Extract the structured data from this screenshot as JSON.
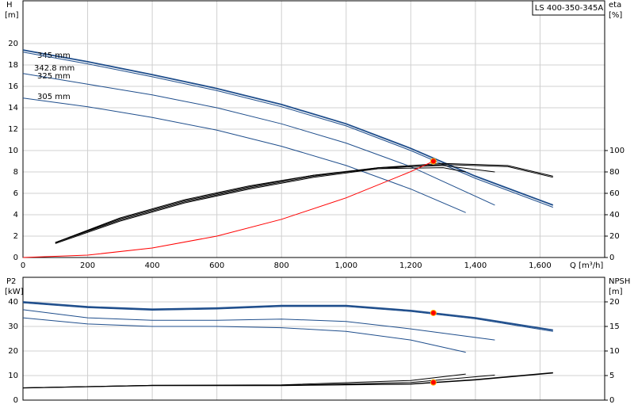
{
  "chart_data": [
    {
      "type": "line",
      "title": "LS 400-350-345A",
      "ylabel": "H",
      "yunit": "[m]",
      "y2label": "eta",
      "y2unit": "[%]",
      "xlabel": "Q [m³/h]",
      "xlim": [
        0,
        1800
      ],
      "xticks": [
        0,
        200,
        400,
        600,
        800,
        {
          "value": 1000,
          "label": "1,000"
        },
        {
          "value": 1200,
          "label": "1,200"
        },
        {
          "value": 1400,
          "label": "1,400"
        },
        {
          "value": 1600,
          "label": "1,600"
        }
      ],
      "ylim": [
        0,
        24
      ],
      "yticks": [
        0,
        2,
        4,
        6,
        8,
        10,
        12,
        14,
        16,
        18,
        20
      ],
      "y2lim": [
        0,
        240
      ],
      "y2ticks": [
        0,
        20,
        40,
        60,
        80,
        100
      ],
      "grid": true,
      "series": [
        {
          "name": "345 mm",
          "color": "#1f4e8c",
          "x": [
            0,
            200,
            400,
            600,
            800,
            1000,
            1200,
            1400,
            1640
          ],
          "values": [
            19.4,
            18.3,
            17.1,
            15.8,
            14.3,
            12.5,
            10.2,
            7.6,
            4.9
          ]
        },
        {
          "name": "342.8 mm",
          "color": "#1f4e8c",
          "x": [
            0,
            200,
            400,
            600,
            800,
            1000,
            1200,
            1400,
            1640
          ],
          "values": [
            19.2,
            18.1,
            16.9,
            15.6,
            14.1,
            12.3,
            10.0,
            7.4,
            4.7
          ]
        },
        {
          "name": "325 mm",
          "color": "#1f4e8c",
          "x": [
            0,
            200,
            400,
            600,
            800,
            1000,
            1200,
            1460
          ],
          "values": [
            17.2,
            16.2,
            15.2,
            14.0,
            12.5,
            10.7,
            8.5,
            4.9
          ]
        },
        {
          "name": "305 mm",
          "color": "#1f4e8c",
          "x": [
            0,
            200,
            400,
            600,
            800,
            1000,
            1200,
            1370
          ],
          "values": [
            14.9,
            14.1,
            13.1,
            11.9,
            10.4,
            8.6,
            6.4,
            4.2
          ]
        },
        {
          "color": "#000000",
          "axis": "y2",
          "x": [
            100,
            300,
            500,
            700,
            900,
            1100,
            1300,
            1500,
            1640
          ],
          "values": [
            14,
            35,
            52,
            65,
            76,
            84,
            88,
            86,
            76
          ]
        },
        {
          "color": "#000000",
          "axis": "y2",
          "x": [
            100,
            300,
            500,
            700,
            900,
            1100,
            1300,
            1500,
            1640
          ],
          "values": [
            13,
            34,
            51,
            64,
            75,
            83,
            87,
            85,
            75
          ]
        },
        {
          "color": "#000000",
          "axis": "y2",
          "x": [
            100,
            300,
            500,
            700,
            900,
            1100,
            1300,
            1460
          ],
          "values": [
            14,
            36,
            53,
            66,
            77,
            84,
            86,
            80
          ]
        },
        {
          "color": "#000000",
          "axis": "y2",
          "x": [
            100,
            300,
            500,
            700,
            900,
            1100,
            1300,
            1370
          ],
          "values": [
            14,
            37,
            54,
            67,
            77,
            83,
            84,
            80
          ]
        },
        {
          "color": "#ff0000",
          "x": [
            0,
            200,
            400,
            600,
            800,
            1000,
            1200,
            1270
          ],
          "values": [
            0,
            0.22,
            0.89,
            2.0,
            3.57,
            5.58,
            8.03,
            9.0
          ]
        }
      ],
      "points": [
        {
          "color": "#ff0000",
          "x": 1270,
          "y": 9.0
        }
      ]
    },
    {
      "type": "line",
      "ylabel": "P2",
      "yunit": "[kW]",
      "y2label": "NPSH",
      "y2unit": "[m]",
      "xlim": [
        0,
        1800
      ],
      "xticks": [
        0,
        200,
        400,
        600,
        800,
        1000,
        1200,
        1400,
        1600
      ],
      "ylim": [
        0,
        50
      ],
      "yticks": [
        0,
        10,
        20,
        30,
        40
      ],
      "y2lim": [
        0,
        25
      ],
      "y2ticks": [
        0,
        5,
        10,
        15,
        20
      ],
      "grid": true,
      "series": [
        {
          "color": "#1f4e8c",
          "x": [
            0,
            200,
            400,
            600,
            800,
            1000,
            1200,
            1400,
            1640
          ],
          "values": [
            40,
            38,
            37,
            37.5,
            38.5,
            38.5,
            36.5,
            33.5,
            28.5
          ]
        },
        {
          "color": "#1f4e8c",
          "x": [
            0,
            200,
            400,
            600,
            800,
            1000,
            1200,
            1400,
            1640
          ],
          "values": [
            39.6,
            37.6,
            36.6,
            37.1,
            38.1,
            38.1,
            36.1,
            33.1,
            28
          ]
        },
        {
          "color": "#1f4e8c",
          "x": [
            0,
            200,
            400,
            600,
            800,
            1000,
            1200,
            1460
          ],
          "values": [
            36.8,
            33.5,
            32.5,
            32.5,
            33,
            32,
            29,
            24.5
          ]
        },
        {
          "color": "#1f4e8c",
          "x": [
            0,
            200,
            400,
            600,
            800,
            1000,
            1200,
            1370
          ],
          "values": [
            33.5,
            31,
            30,
            30,
            29.5,
            28,
            24.5,
            19.5
          ]
        },
        {
          "color": "#000000",
          "axis": "y2",
          "x": [
            0,
            400,
            800,
            1200,
            1400,
            1640
          ],
          "values": [
            2.5,
            3.0,
            3.0,
            3.3,
            4.2,
            5.6
          ]
        },
        {
          "color": "#000000",
          "axis": "y2",
          "x": [
            0,
            400,
            800,
            1200,
            1400,
            1640
          ],
          "values": [
            2.45,
            2.95,
            2.95,
            3.25,
            4.1,
            5.5
          ]
        },
        {
          "color": "#000000",
          "axis": "y2",
          "x": [
            0,
            400,
            800,
            1200,
            1460
          ],
          "values": [
            2.5,
            3.0,
            3.0,
            3.6,
            5.1
          ]
        },
        {
          "color": "#000000",
          "axis": "y2",
          "x": [
            0,
            400,
            800,
            1200,
            1370
          ],
          "values": [
            2.5,
            3.0,
            3.1,
            4.0,
            5.3
          ]
        }
      ],
      "points": [
        {
          "color": "#ff0000",
          "x": 1270,
          "y": 35.5
        },
        {
          "color": "#ff0000",
          "x": 1270,
          "y": 3.6,
          "axis": "y2"
        }
      ]
    }
  ]
}
